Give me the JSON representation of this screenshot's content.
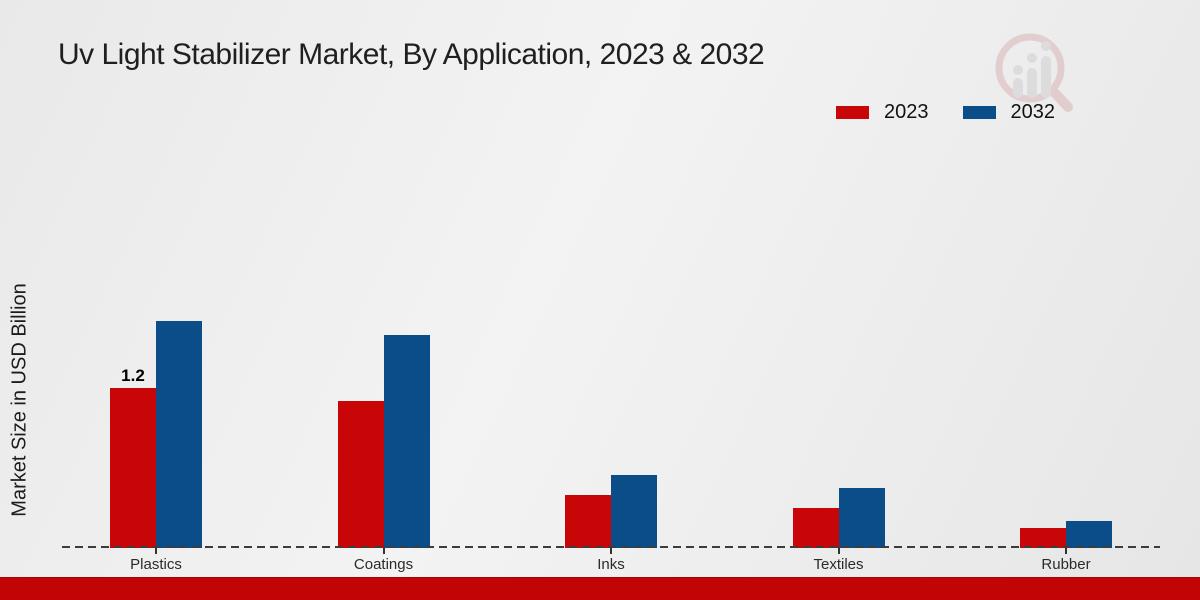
{
  "chart_data": {
    "type": "bar",
    "title": "Uv Light Stabilizer Market, By Application, 2023 & 2032",
    "ylabel": "Market Size in USD Billion",
    "xlabel": "",
    "categories": [
      "Plastics",
      "Coatings",
      "Inks",
      "Textiles",
      "Rubber"
    ],
    "series": [
      {
        "name": "2023",
        "color": "#c80607",
        "values": [
          1.2,
          1.1,
          0.4,
          0.3,
          0.15
        ]
      },
      {
        "name": "2032",
        "color": "#0b4d88",
        "values": [
          1.7,
          1.6,
          0.55,
          0.45,
          0.2
        ]
      }
    ],
    "data_labels": [
      {
        "category_index": 0,
        "series_index": 0,
        "text": "1.2"
      }
    ],
    "ylim": [
      0,
      1.8
    ],
    "grid": false,
    "baseline_style": "dashed",
    "legend_position": "top-right"
  },
  "colors": {
    "footer_red": "#c10507",
    "axis_line": "#3c3c3c",
    "title_text": "#1f1f1f"
  },
  "watermark": {
    "icon": "magnifier-bar-chart-logo"
  }
}
